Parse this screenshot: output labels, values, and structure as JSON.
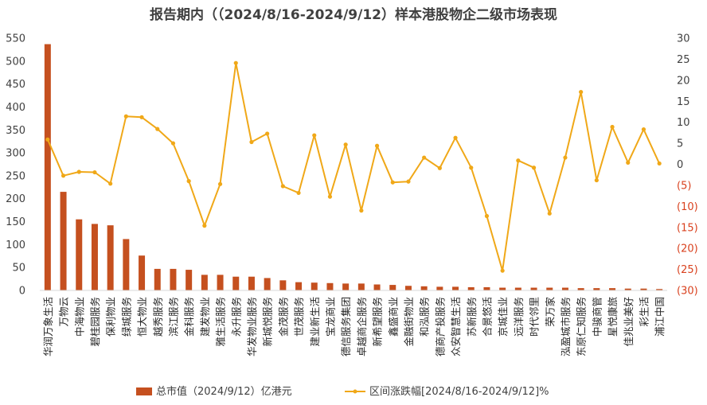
{
  "chart_data": {
    "type": "bar",
    "title": "报告期内（（2024/8/16-2024/9/12）样本港股物企二级市场表现",
    "categories": [
      "华润万象生活",
      "万物云",
      "中海物业",
      "碧桂园服务",
      "保利物业",
      "绿城服务",
      "恒大物业",
      "越秀服务",
      "滨江服务",
      "金科服务",
      "建发物业",
      "雅生活服务",
      "永升服务",
      "华发物业服务",
      "新城悦服务",
      "金茂服务",
      "世茂服务",
      "建业新生活",
      "宝龙商业",
      "德信服务集团",
      "卓越商企服务",
      "新希望服务",
      "鑫盛商业",
      "金融街物业",
      "和泓服务",
      "德商产投服务",
      "众安智慧生活",
      "苏新服务",
      "合景悠活",
      "京城佳业",
      "远洋服务",
      "时代邻里",
      "荣万家",
      "泓盈城市服务",
      "东原仁知服务",
      "中骏商管",
      "星悦康旅",
      "佳兆业美好",
      "彩生活",
      "浦江中国"
    ],
    "series": [
      {
        "name": "总市值（2024/9/12）亿港元",
        "type": "bar",
        "axis": "left",
        "color": "#c5501f",
        "values": [
          537,
          215,
          155,
          145,
          142,
          112,
          76,
          47,
          47,
          45,
          34,
          34,
          30,
          30,
          27,
          22,
          18,
          17,
          16,
          15,
          15,
          13,
          12,
          10,
          9,
          8,
          8,
          7,
          7,
          6,
          6,
          6,
          6,
          6,
          5,
          5,
          5,
          4,
          4,
          3
        ]
      },
      {
        "name": "区间涨跌幅[2024/8/16-2024/9/12]%",
        "type": "line",
        "axis": "right",
        "color": "#f0a818",
        "values": [
          5.9,
          -2.7,
          -1.8,
          -1.9,
          -4.6,
          11.4,
          11.2,
          8.4,
          5.0,
          -4.0,
          -14.6,
          -4.7,
          24.1,
          5.3,
          7.3,
          -5.2,
          -6.8,
          6.9,
          -7.7,
          4.7,
          -11.0,
          4.4,
          -4.3,
          -4.1,
          1.6,
          -0.9,
          6.3,
          -0.8,
          -12.3,
          -25.3,
          0.9,
          -0.8,
          -11.7,
          1.6,
          17.2,
          -3.8,
          8.9,
          0.4,
          8.3,
          0.2
        ]
      }
    ],
    "y_left": {
      "ylim": [
        0,
        550
      ],
      "ticks": [
        0,
        50,
        100,
        150,
        200,
        250,
        300,
        350,
        400,
        450,
        500,
        550
      ]
    },
    "y_right": {
      "ylim": [
        -30,
        30
      ],
      "ticks": [
        -30,
        -25,
        -20,
        -15,
        -10,
        -5,
        0,
        5,
        10,
        15,
        20,
        25,
        30
      ],
      "tick_labels": [
        "(30)",
        "(25)",
        "(20)",
        "(15)",
        "(10)",
        "(5)",
        "0",
        "5",
        "10",
        "15",
        "20",
        "25",
        "30"
      ]
    },
    "negative_color": "#d9411e",
    "text_color": "#404040",
    "grid": false,
    "legend_position": "bottom"
  }
}
